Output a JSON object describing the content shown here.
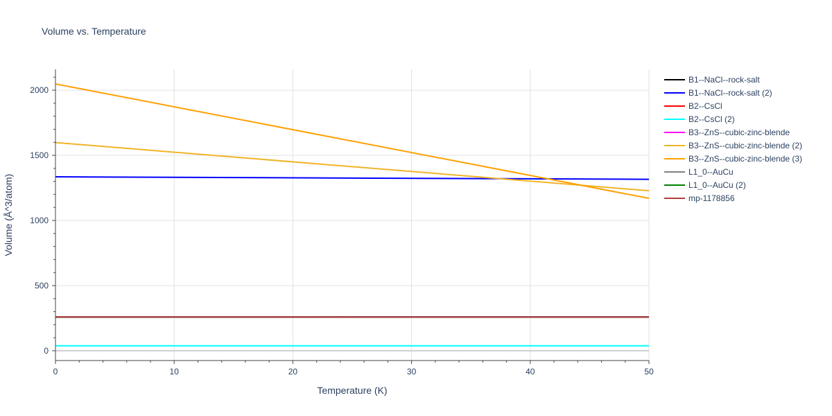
{
  "chart_data": {
    "type": "line",
    "title": "Volume vs. Temperature",
    "xlabel": "Temperature (K)",
    "ylabel": "Volume (Å^3/atom)",
    "xlim": [
      0,
      50
    ],
    "ylim": [
      -75,
      2160
    ],
    "x_ticks": [
      0,
      10,
      20,
      30,
      40,
      50
    ],
    "y_ticks": [
      0,
      500,
      1000,
      1500,
      2000
    ],
    "grid": true,
    "legend_position": "right",
    "series": [
      {
        "name": "B1--NaCl--rock-salt",
        "color": "#000000",
        "x": [
          0,
          50
        ],
        "y": [
          260,
          260
        ]
      },
      {
        "name": "B1--NaCl--rock-salt (2)",
        "color": "#0000ff",
        "x": [
          0,
          50
        ],
        "y": [
          1335,
          1316
        ]
      },
      {
        "name": "B2--CsCl",
        "color": "#ff0000",
        "x": [
          0,
          50
        ],
        "y": [
          258,
          258
        ]
      },
      {
        "name": "B2--CsCl (2)",
        "color": "#00ffff",
        "x": [
          0,
          50
        ],
        "y": [
          38,
          38
        ]
      },
      {
        "name": "B3--ZnS--cubic-zinc-blende",
        "color": "#ff00ff",
        "x": [
          0,
          50
        ],
        "y": [
          259,
          259
        ]
      },
      {
        "name": "B3--ZnS--cubic-zinc-blende (2)",
        "color": "#f0b428",
        "x": [
          0,
          50
        ],
        "y": [
          1598,
          1228
        ]
      },
      {
        "name": "B3--ZnS--cubic-zinc-blende (3)",
        "color": "#ffa000",
        "x": [
          0,
          50
        ],
        "y": [
          2048,
          1170
        ]
      },
      {
        "name": "L1_0--AuCu",
        "color": "#808080",
        "x": [
          0,
          50
        ],
        "y": [
          258,
          258
        ]
      },
      {
        "name": "L1_0--AuCu (2)",
        "color": "#008000",
        "x": [
          0,
          50
        ],
        "y": [
          258,
          258
        ]
      },
      {
        "name": "mp-1178856",
        "color": "#b03c3c",
        "x": [
          0,
          50
        ],
        "y": [
          259,
          258
        ]
      }
    ]
  }
}
